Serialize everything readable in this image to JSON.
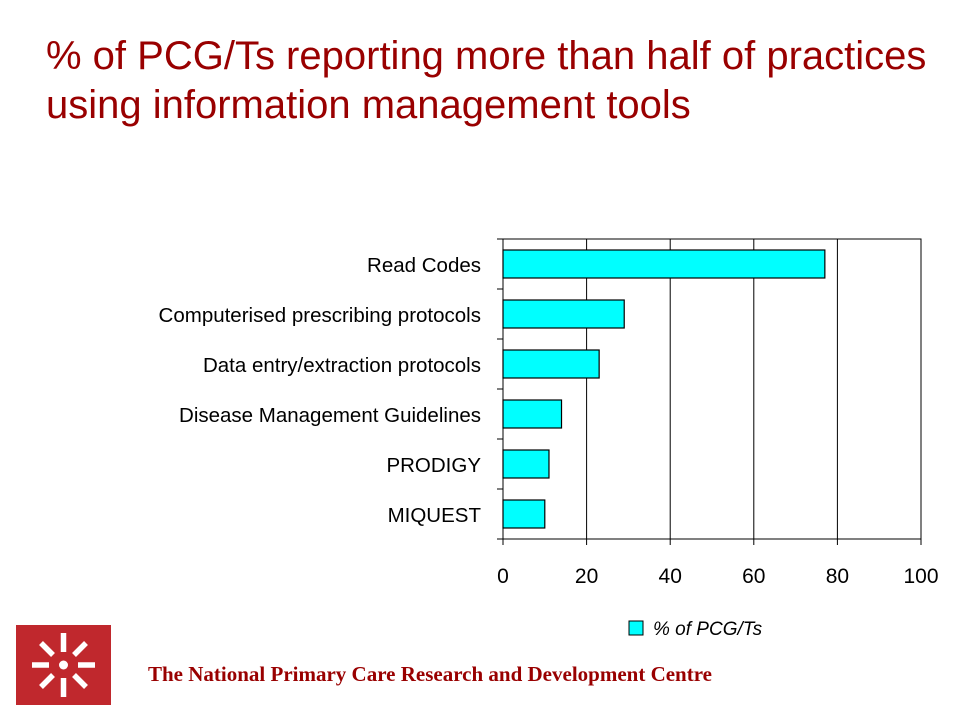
{
  "slide": {
    "title": "% of PCG/Ts reporting more than half of practices using information management tools",
    "footer": "The National Primary Care Research and Development Centre"
  },
  "colors": {
    "title": "#990000",
    "bar_fill": "#00FFFF",
    "logo": "#C0282D"
  },
  "icons": {
    "logo": "spark-logo-icon"
  },
  "chart_data": {
    "type": "bar",
    "orientation": "horizontal",
    "categories": [
      "Read Codes",
      "Computerised prescribing protocols",
      "Data entry/extraction protocols",
      "Disease Management Guidelines",
      "PRODIGY",
      "MIQUEST"
    ],
    "series": [
      {
        "name": "% of PCG/Ts",
        "values": [
          77,
          29,
          23,
          14,
          11,
          10
        ]
      }
    ],
    "xlim": [
      0,
      100
    ],
    "xticks": [
      0,
      20,
      40,
      60,
      80,
      100
    ],
    "grid": true,
    "legend": "bottom-right"
  }
}
